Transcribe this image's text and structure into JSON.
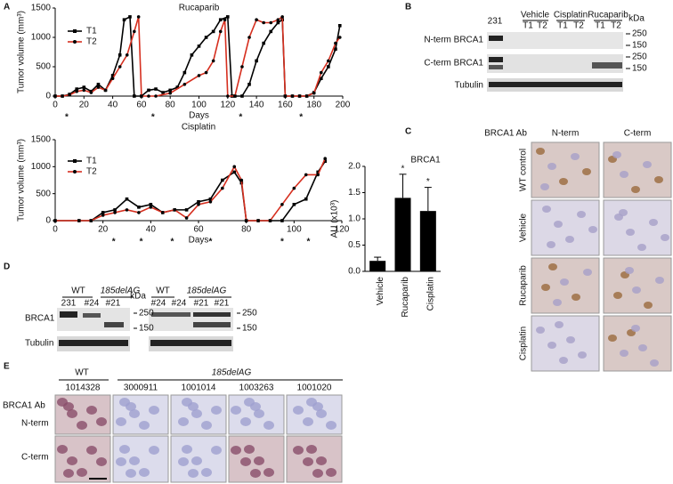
{
  "chart_data": [
    {
      "type": "line",
      "title": "Rucaparib",
      "x_label": "Days",
      "y_label": "Tumor volume (mm³)",
      "xlim": [
        0,
        200
      ],
      "xticks": [
        0,
        20,
        40,
        60,
        80,
        100,
        120,
        140,
        160,
        180,
        200
      ],
      "ylim": [
        0,
        1500
      ],
      "yticks": [
        0,
        500,
        1000,
        1500
      ],
      "series": [
        {
          "name": "T1",
          "color": "#000000",
          "marker": "square",
          "x": [
            0,
            5,
            10,
            15,
            20,
            25,
            30,
            35,
            40,
            45,
            48,
            52,
            55,
            60,
            65,
            70,
            75,
            80,
            85,
            90,
            95,
            100,
            105,
            110,
            115,
            120,
            123,
            125,
            130,
            135,
            140,
            145,
            150,
            155,
            158,
            160,
            165,
            170,
            175,
            180,
            185,
            190,
            195,
            198
          ],
          "values": [
            0,
            0,
            30,
            120,
            150,
            80,
            200,
            100,
            350,
            700,
            1300,
            1350,
            0,
            0,
            100,
            120,
            60,
            100,
            150,
            400,
            700,
            850,
            1000,
            1100,
            1300,
            1350,
            0,
            0,
            0,
            200,
            600,
            900,
            1100,
            1250,
            1300,
            0,
            0,
            0,
            0,
            60,
            300,
            500,
            800,
            1200
          ]
        },
        {
          "name": "T2",
          "color": "#d62f1f",
          "marker": "circle",
          "x": [
            0,
            5,
            10,
            15,
            20,
            25,
            30,
            35,
            40,
            45,
            50,
            55,
            58,
            60,
            65,
            70,
            80,
            90,
            100,
            105,
            110,
            115,
            118,
            120,
            125,
            130,
            135,
            140,
            145,
            150,
            155,
            158,
            160,
            165,
            170,
            175,
            180,
            185,
            190,
            195,
            198
          ],
          "values": [
            0,
            0,
            20,
            80,
            100,
            60,
            150,
            100,
            300,
            500,
            700,
            1100,
            1350,
            0,
            0,
            0,
            50,
            200,
            350,
            400,
            600,
            1100,
            1300,
            0,
            0,
            500,
            1000,
            1300,
            1250,
            1250,
            1300,
            1350,
            0,
            0,
            0,
            0,
            50,
            400,
            600,
            900,
            1000
          ]
        }
      ],
      "dosing": {
        "label": "*",
        "x": [
          8,
          68,
          129,
          171
        ]
      }
    },
    {
      "type": "line",
      "title": "Cisplatin",
      "x_label": "Days",
      "y_label": "Tumor volume (mm³)",
      "xlim": [
        0,
        120
      ],
      "xticks": [
        0,
        20,
        40,
        60,
        80,
        100,
        120
      ],
      "ylim": [
        0,
        1500
      ],
      "yticks": [
        0,
        500,
        1000,
        1500
      ],
      "series": [
        {
          "name": "T1",
          "color": "#000000",
          "marker": "square",
          "x": [
            0,
            10,
            15,
            20,
            25,
            30,
            35,
            40,
            45,
            50,
            55,
            60,
            65,
            70,
            75,
            78,
            80,
            85,
            90,
            95,
            100,
            105,
            110,
            113
          ],
          "values": [
            0,
            0,
            0,
            150,
            200,
            400,
            250,
            300,
            150,
            200,
            200,
            350,
            400,
            750,
            900,
            700,
            0,
            0,
            0,
            0,
            300,
            400,
            900,
            1100
          ]
        },
        {
          "name": "T2",
          "color": "#d62f1f",
          "marker": "circle",
          "x": [
            0,
            10,
            15,
            20,
            25,
            30,
            35,
            40,
            45,
            50,
            55,
            60,
            65,
            70,
            75,
            78,
            80,
            85,
            90,
            95,
            100,
            105,
            110,
            113
          ],
          "values": [
            0,
            0,
            0,
            100,
            150,
            200,
            150,
            250,
            150,
            200,
            50,
            300,
            350,
            600,
            1000,
            750,
            0,
            0,
            0,
            300,
            600,
            850,
            850,
            1150
          ]
        }
      ],
      "dosing": {
        "label": "*",
        "x": [
          24.5,
          36,
          49,
          65,
          95,
          106
        ]
      }
    },
    {
      "type": "bar",
      "title": "BRCA1",
      "y_label": "AU (x10³)",
      "categories": [
        "Vehicle",
        "Rucaparib",
        "Cisplatin"
      ],
      "values": [
        0.2,
        1.4,
        1.15
      ],
      "errors": [
        0.07,
        0.45,
        0.45
      ],
      "significance": [
        "*",
        "*"
      ],
      "color": "#000000",
      "ylim": [
        0,
        2.0
      ],
      "yticks": [
        {
          "value": 0,
          "label": "0.0"
        },
        0.5,
        {
          "value": 1,
          "label": "1.0"
        },
        1.5,
        {
          "value": 2,
          "label": "2.0"
        }
      ]
    }
  ],
  "panels": {
    "letters": [
      "A",
      "B",
      "C",
      "D",
      "E"
    ],
    "blot_B": {
      "size_ref": "231",
      "groups": [
        "Vehicle",
        "Cisplatin",
        "Rucaparib"
      ],
      "lanes": [
        "T1",
        "T2",
        "T1",
        "T2",
        "T1",
        "T2"
      ],
      "unit": "kDa",
      "rows": [
        "N-term BRCA1",
        "C-term BRCA1",
        "Tubulin"
      ],
      "markers": [
        "250",
        "150",
        "250",
        "150"
      ]
    },
    "ihc_C": {
      "antibody": "BRCA1 Ab",
      "columns": [
        "N-term",
        "C-term"
      ],
      "rows": [
        "WT control",
        "Vehicle",
        "Rucaparib",
        "Cisplatin"
      ]
    },
    "blot_D": {
      "groups": [
        "WT",
        "185delAG",
        "WT",
        "185delAG"
      ],
      "lanes": [
        "231",
        "#24",
        "#21",
        "#24",
        "#24",
        "#21",
        "#21"
      ],
      "unit": "kDa",
      "rows": [
        "BRCA1",
        "Tubulin"
      ],
      "markers": [
        "250",
        "150",
        "250",
        "150"
      ]
    },
    "ihc_E": {
      "groups": [
        "WT",
        "185delAG"
      ],
      "samples": [
        "1014328",
        "3000911",
        "1001014",
        "1003263",
        "1001020"
      ],
      "antibody": "BRCA1 Ab",
      "rows": [
        "N-term",
        "C-term"
      ]
    }
  }
}
